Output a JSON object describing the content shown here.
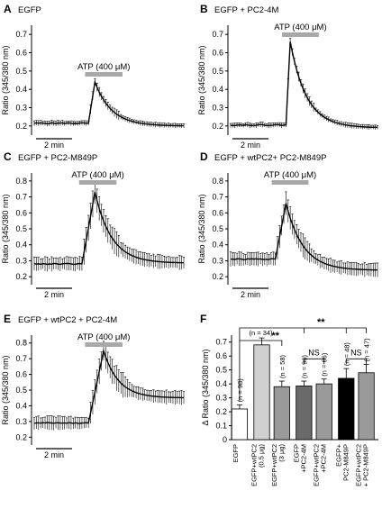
{
  "figure": "Calcium imaging traces and summary bar chart",
  "chart_data": [
    {
      "type": "line",
      "panel": "A",
      "title": "EGFP",
      "stimulus_label": "ATP (400 μM)",
      "scalebar_label": "2 min",
      "ylabel": "Ratio (345/380 nm)",
      "yticks": [
        0.2,
        0.3,
        0.4,
        0.5,
        0.6,
        0.7
      ],
      "ylim": [
        0.15,
        0.75
      ],
      "series": [
        {
          "baseline": 0.215,
          "peak": 0.44,
          "end": 0.2,
          "baseline_frac": 0.36,
          "peak_frac": 0.4
        }
      ]
    },
    {
      "type": "line",
      "panel": "B",
      "title": "EGFP + PC2-4M",
      "stimulus_label": "ATP (400 μM)",
      "scalebar_label": "2 min",
      "ylabel": "Ratio (345/380 nm)",
      "yticks": [
        0.2,
        0.3,
        0.4,
        0.5,
        0.6,
        0.7
      ],
      "ylim": [
        0.15,
        0.75
      ],
      "series": [
        {
          "baseline": 0.205,
          "peak": 0.66,
          "end": 0.19,
          "baseline_frac": 0.37,
          "peak_frac": 0.4
        }
      ]
    },
    {
      "type": "line",
      "panel": "C",
      "title": "EGFP + PC2-M849P",
      "stimulus_label": "ATP (400 μM)",
      "scalebar_label": "2 min",
      "ylabel": "Ratio (345/380 nm)",
      "yticks": [
        0.2,
        0.3,
        0.4,
        0.5,
        0.6,
        0.7,
        0.8
      ],
      "ylim": [
        0.15,
        0.85
      ],
      "series": [
        {
          "baseline": 0.28,
          "peak": 0.73,
          "end": 0.285,
          "baseline_frac": 0.32,
          "peak_frac": 0.4
        }
      ]
    },
    {
      "type": "line",
      "panel": "D",
      "title": "EGFP + wtPC2+ PC2-M849P",
      "stimulus_label": "ATP (400 μM)",
      "scalebar_label": "2 min",
      "ylabel": "Ratio (345/380 nm)",
      "yticks": [
        0.2,
        0.3,
        0.4,
        0.5,
        0.6,
        0.7,
        0.8
      ],
      "ylim": [
        0.15,
        0.85
      ],
      "series": [
        {
          "baseline": 0.31,
          "peak": 0.66,
          "end": 0.24,
          "baseline_frac": 0.3,
          "peak_frac": 0.37
        }
      ]
    },
    {
      "type": "line",
      "panel": "E",
      "title": "EGFP + wtPC2 + PC2-4M",
      "stimulus_label": "ATP (400 μM)",
      "scalebar_label": "2 min",
      "ylabel": "Ratio (345/380 nm)",
      "yticks": [
        0.2,
        0.3,
        0.4,
        0.5,
        0.6,
        0.7,
        0.8
      ],
      "ylim": [
        0.15,
        0.85
      ],
      "series": [
        {
          "baseline": 0.29,
          "peak": 0.75,
          "end": 0.45,
          "baseline_frac": 0.36,
          "peak_frac": 0.45
        }
      ]
    },
    {
      "type": "bar",
      "panel": "F",
      "ylabel": "Δ Ratio (345/380 nm)",
      "yticks": [
        0,
        0.1,
        0.2,
        0.3,
        0.4,
        0.5,
        0.6,
        0.7
      ],
      "ylim": [
        0,
        0.75
      ],
      "categories": [
        "EGFP",
        "EGFP+wtPC2 (0.5 μg)",
        "EGFP+wtPC2 (3 μg)",
        "EGFP +PC2-4M",
        "EGFP+wtPC2 +PC2-4M",
        "EGFP+ PC2-M849P",
        "EGFP+wtPC2 + PC2-M849P"
      ],
      "category_lines": [
        [
          "EGFP"
        ],
        [
          "EGFP+wtPC2",
          "(0.5 μg)"
        ],
        [
          "EGFP+wtPC2",
          "(3 μg)"
        ],
        [
          "EGFP",
          "+PC2-4M"
        ],
        [
          "EGFP+wtPC2",
          "+PC2-4M"
        ],
        [
          "EGFP+",
          "PC2-M849P"
        ],
        [
          "EGFP+wtPC2",
          "+ PC2-M849P"
        ]
      ],
      "values": [
        0.22,
        0.68,
        0.38,
        0.385,
        0.4,
        0.44,
        0.48
      ],
      "errors": [
        0.03,
        0.05,
        0.04,
        0.035,
        0.035,
        0.07,
        0.06
      ],
      "n_labels": [
        "(n = 98)",
        "(n = 34)",
        "(n = 58)",
        "(n = 90)",
        "(n = 66)",
        "(n = 48)",
        "(n = 47)"
      ],
      "colors": [
        "#ffffff",
        "#d0d0d0",
        "#9a9a9a",
        "#6a6a6a",
        "#9a9a9a",
        "#000000",
        "#9a9a9a"
      ],
      "annotations": [
        "**",
        "**",
        "NS",
        "NS"
      ]
    }
  ],
  "panel_colors": {
    "trace": "#000000",
    "stim_bar": "#a8a8a8"
  }
}
